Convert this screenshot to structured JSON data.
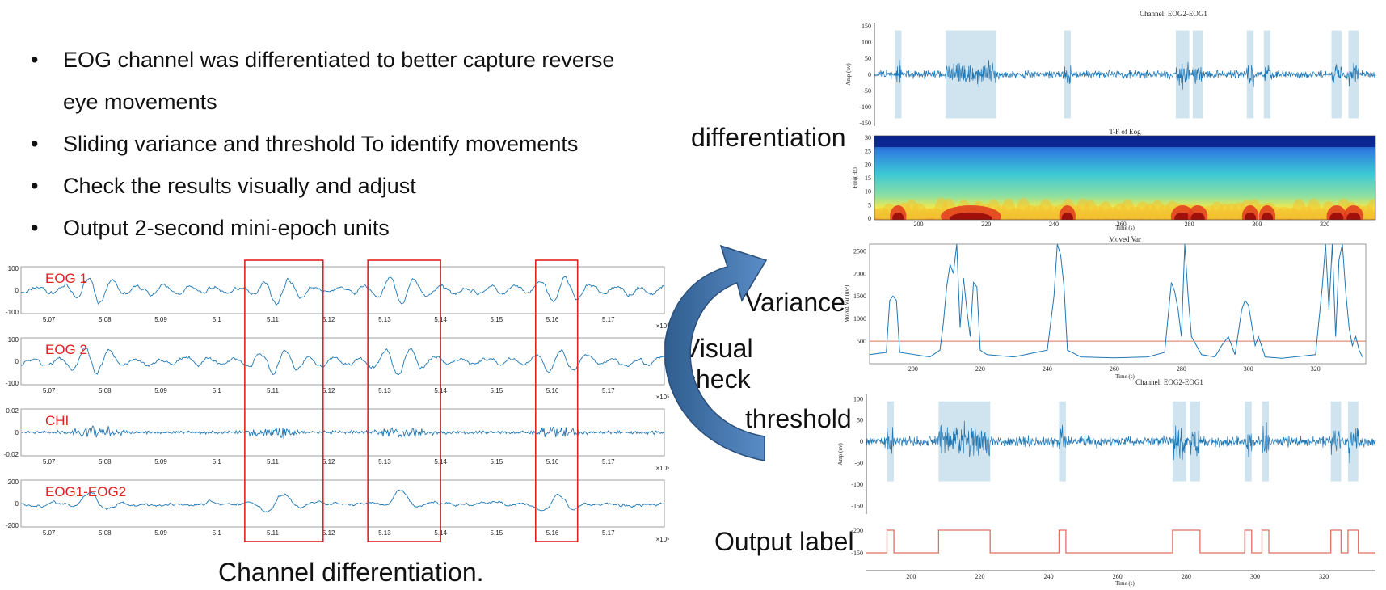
{
  "bullets": [
    "EOG channel was differentiated to better capture reverse",
    "eye movements",
    "Sliding variance and threshold To identify movements",
    "Check the results visually and adjust",
    "Output 2-second mini-epoch units"
  ],
  "bullet_marker": "•",
  "caption": "Channel differentiation.",
  "arrow_label": [
    "Visual",
    "check"
  ],
  "side_labels": {
    "differentiation": "differentiation",
    "variance": "Variance",
    "threshold": "threshold",
    "output": "Output label"
  },
  "colors": {
    "signal": "#1f77b4",
    "highlight": "#e0231f",
    "shade": "#bcd8e8",
    "threshold": "#e07060",
    "arrow": "#3a6ea5"
  },
  "left_panel": {
    "x_ticks": [
      "5.07",
      "5.08",
      "5.09",
      "5.1",
      "5.11",
      "5.12",
      "5.13",
      "5.14",
      "5.15",
      "5.16",
      "5.17"
    ],
    "x_exponent": "×10⁵",
    "channels": [
      {
        "name": "EOG 1",
        "y_ticks": [
          "100",
          "0",
          "-100"
        ]
      },
      {
        "name": "EOG 2",
        "y_ticks": [
          "100",
          "0",
          "-100"
        ]
      },
      {
        "name": "CHI",
        "y_ticks": [
          "0.02",
          "0",
          "-0.02"
        ]
      },
      {
        "name": "EOG1-EOG2",
        "y_ticks": [
          "200",
          "0",
          "-200"
        ]
      }
    ],
    "highlight_boxes": [
      {
        "from": 5.105,
        "to": 5.119
      },
      {
        "from": 5.127,
        "to": 5.14
      },
      {
        "from": 5.157,
        "to": 5.1645
      }
    ]
  },
  "chart_data": [
    {
      "type": "line",
      "title": "Channel: EOG2-EOG1",
      "ylabel": "Amp (uv)",
      "y_ticks": [
        "150",
        "100",
        "50",
        "0",
        "-50",
        "-100",
        "-150"
      ],
      "ylim": [
        -160,
        160
      ],
      "xlim": [
        187,
        335
      ],
      "shaded_intervals": [
        [
          193,
          195
        ],
        [
          208,
          223
        ],
        [
          243,
          245
        ],
        [
          276,
          280
        ],
        [
          281,
          284
        ],
        [
          297,
          299
        ],
        [
          302,
          304
        ],
        [
          322,
          325
        ],
        [
          327,
          330
        ]
      ]
    },
    {
      "type": "heatmap",
      "title": "T-F of Eog",
      "ylabel": "Freq(Hz)",
      "xlabel": "Time (s)",
      "y_ticks": [
        "30",
        "25",
        "20",
        "15",
        "10",
        "5",
        "0"
      ],
      "x_ticks": [
        "200",
        "220",
        "240",
        "260",
        "280",
        "300",
        "320"
      ],
      "xlim": [
        187,
        335
      ]
    },
    {
      "type": "line",
      "title": "Moved Var",
      "ylabel": "Moved Var (uv²)",
      "xlabel": "Time (s)",
      "y_ticks": [
        "2500",
        "2000",
        "1500",
        "1000",
        "500"
      ],
      "x_ticks": [
        "200",
        "220",
        "240",
        "260",
        "280",
        "300",
        "320"
      ],
      "ylim": [
        0,
        2650
      ],
      "xlim": [
        187,
        335
      ],
      "threshold": 500,
      "x": [
        187,
        192,
        193,
        194,
        195,
        196,
        205,
        208,
        209,
        210,
        211,
        212,
        213,
        214,
        215,
        216,
        217,
        218,
        219,
        220,
        222,
        230,
        240,
        242,
        243,
        244,
        245,
        246,
        250,
        260,
        270,
        275,
        277,
        278,
        279,
        280,
        281,
        282,
        283,
        286,
        290,
        292,
        294,
        296,
        298,
        299,
        300,
        302,
        303,
        305,
        310,
        320,
        322,
        323,
        324,
        325,
        326,
        327,
        328,
        329,
        330,
        331,
        332,
        333,
        334
      ],
      "y": [
        200,
        250,
        1400,
        1500,
        1400,
        250,
        150,
        300,
        900,
        1700,
        2200,
        2000,
        2650,
        800,
        1900,
        1200,
        600,
        1800,
        1700,
        300,
        200,
        150,
        300,
        1500,
        2650,
        2400,
        1700,
        300,
        150,
        130,
        150,
        250,
        1800,
        1600,
        1200,
        600,
        2650,
        1500,
        600,
        200,
        150,
        400,
        600,
        200,
        1200,
        1400,
        1300,
        400,
        600,
        150,
        120,
        200,
        1700,
        2650,
        1200,
        2650,
        600,
        2300,
        2650,
        1600,
        800,
        400,
        600,
        300,
        150
      ]
    },
    {
      "type": "line",
      "title": "Channel: EOG2-EOG1",
      "ylabel": "Amp (uv)",
      "y_ticks": [
        "100",
        "50",
        "0",
        "-50",
        "-100",
        "-150"
      ],
      "ylim": [
        -170,
        110
      ],
      "xlim": [
        187,
        335
      ],
      "shaded_intervals": [
        [
          193,
          195
        ],
        [
          208,
          223
        ],
        [
          243,
          245
        ],
        [
          276,
          280
        ],
        [
          281,
          284
        ],
        [
          297,
          299
        ],
        [
          302,
          304
        ],
        [
          322,
          325
        ],
        [
          327,
          330
        ]
      ]
    },
    {
      "type": "line",
      "title": "",
      "xlabel": "Time (s)",
      "y_ticks": [
        "-200",
        "-150"
      ],
      "x_ticks": [
        "200",
        "220",
        "240",
        "260",
        "280",
        "300",
        "320"
      ],
      "xlim": [
        187,
        335
      ],
      "label_intervals": [
        [
          193,
          195
        ],
        [
          208,
          223
        ],
        [
          243,
          245
        ],
        [
          276,
          284
        ],
        [
          297,
          299
        ],
        [
          302,
          304
        ],
        [
          322,
          325
        ],
        [
          327,
          330
        ]
      ]
    }
  ]
}
